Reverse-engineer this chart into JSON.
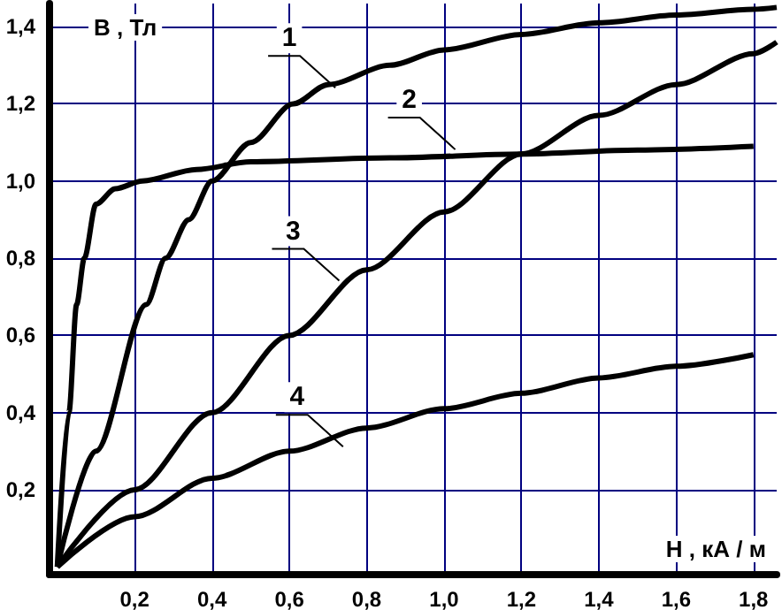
{
  "chart_data": {
    "type": "line",
    "xlabel": "Н , кА / м",
    "ylabel": "В , Тл",
    "xlim": [
      -0.02,
      1.86
    ],
    "ylim": [
      -0.02,
      1.46
    ],
    "xticks": [
      {
        "value": 0.2,
        "label": "0,2"
      },
      {
        "value": 0.4,
        "label": "0,4"
      },
      {
        "value": 0.6,
        "label": "0,6"
      },
      {
        "value": 0.8,
        "label": "0,8"
      },
      {
        "value": 1.0,
        "label": "1,0"
      },
      {
        "value": 1.2,
        "label": "1,2"
      },
      {
        "value": 1.4,
        "label": "1,4"
      },
      {
        "value": 1.6,
        "label": "1,6"
      },
      {
        "value": 1.8,
        "label": "1,8"
      }
    ],
    "yticks": [
      {
        "value": 0.2,
        "label": "0,2"
      },
      {
        "value": 0.4,
        "label": "0,4"
      },
      {
        "value": 0.6,
        "label": "0,6"
      },
      {
        "value": 0.8,
        "label": "0,8"
      },
      {
        "value": 1.0,
        "label": "1,0"
      },
      {
        "value": 1.2,
        "label": "1,2"
      },
      {
        "value": 1.4,
        "label": "1,4"
      }
    ],
    "grid": true,
    "marker": "none",
    "line_style": "solid",
    "series": [
      {
        "color": "#000000",
        "x": [
          0,
          0.1,
          0.23,
          0.28,
          0.34,
          0.4,
          0.5,
          0.61,
          0.7,
          0.86,
          1.0,
          1.2,
          1.4,
          1.6,
          1.8,
          1.86
        ],
        "values": [
          0,
          0.3,
          0.68,
          0.8,
          0.9,
          1.0,
          1.1,
          1.2,
          1.25,
          1.3,
          1.34,
          1.38,
          1.41,
          1.43,
          1.445,
          1.45
        ]
      },
      {
        "color": "#000000",
        "x": [
          0,
          0.03,
          0.05,
          0.07,
          0.1,
          0.15,
          0.22,
          0.36,
          0.5,
          0.86,
          1.2,
          1.5,
          1.8
        ],
        "values": [
          0,
          0.4,
          0.68,
          0.8,
          0.94,
          0.98,
          1.0,
          1.03,
          1.05,
          1.06,
          1.07,
          1.08,
          1.09
        ]
      },
      {
        "color": "#000000",
        "x": [
          0,
          0.2,
          0.4,
          0.6,
          0.8,
          1.0,
          1.2,
          1.4,
          1.6,
          1.8,
          1.86
        ],
        "values": [
          0,
          0.2,
          0.4,
          0.6,
          0.77,
          0.92,
          1.07,
          1.17,
          1.25,
          1.33,
          1.36
        ]
      },
      {
        "color": "#000000",
        "x": [
          0,
          0.2,
          0.4,
          0.6,
          0.8,
          1.0,
          1.2,
          1.4,
          1.6,
          1.8
        ],
        "values": [
          0,
          0.13,
          0.23,
          0.3,
          0.36,
          0.41,
          0.45,
          0.49,
          0.52,
          0.55
        ]
      }
    ],
    "annotations": [
      {
        "text": "1",
        "x": 0.6,
        "y": 1.37
      },
      {
        "text": "2",
        "x": 0.91,
        "y": 1.21
      },
      {
        "text": "3",
        "x": 0.61,
        "y": 0.87
      },
      {
        "text": "4",
        "x": 0.62,
        "y": 0.44
      }
    ]
  }
}
